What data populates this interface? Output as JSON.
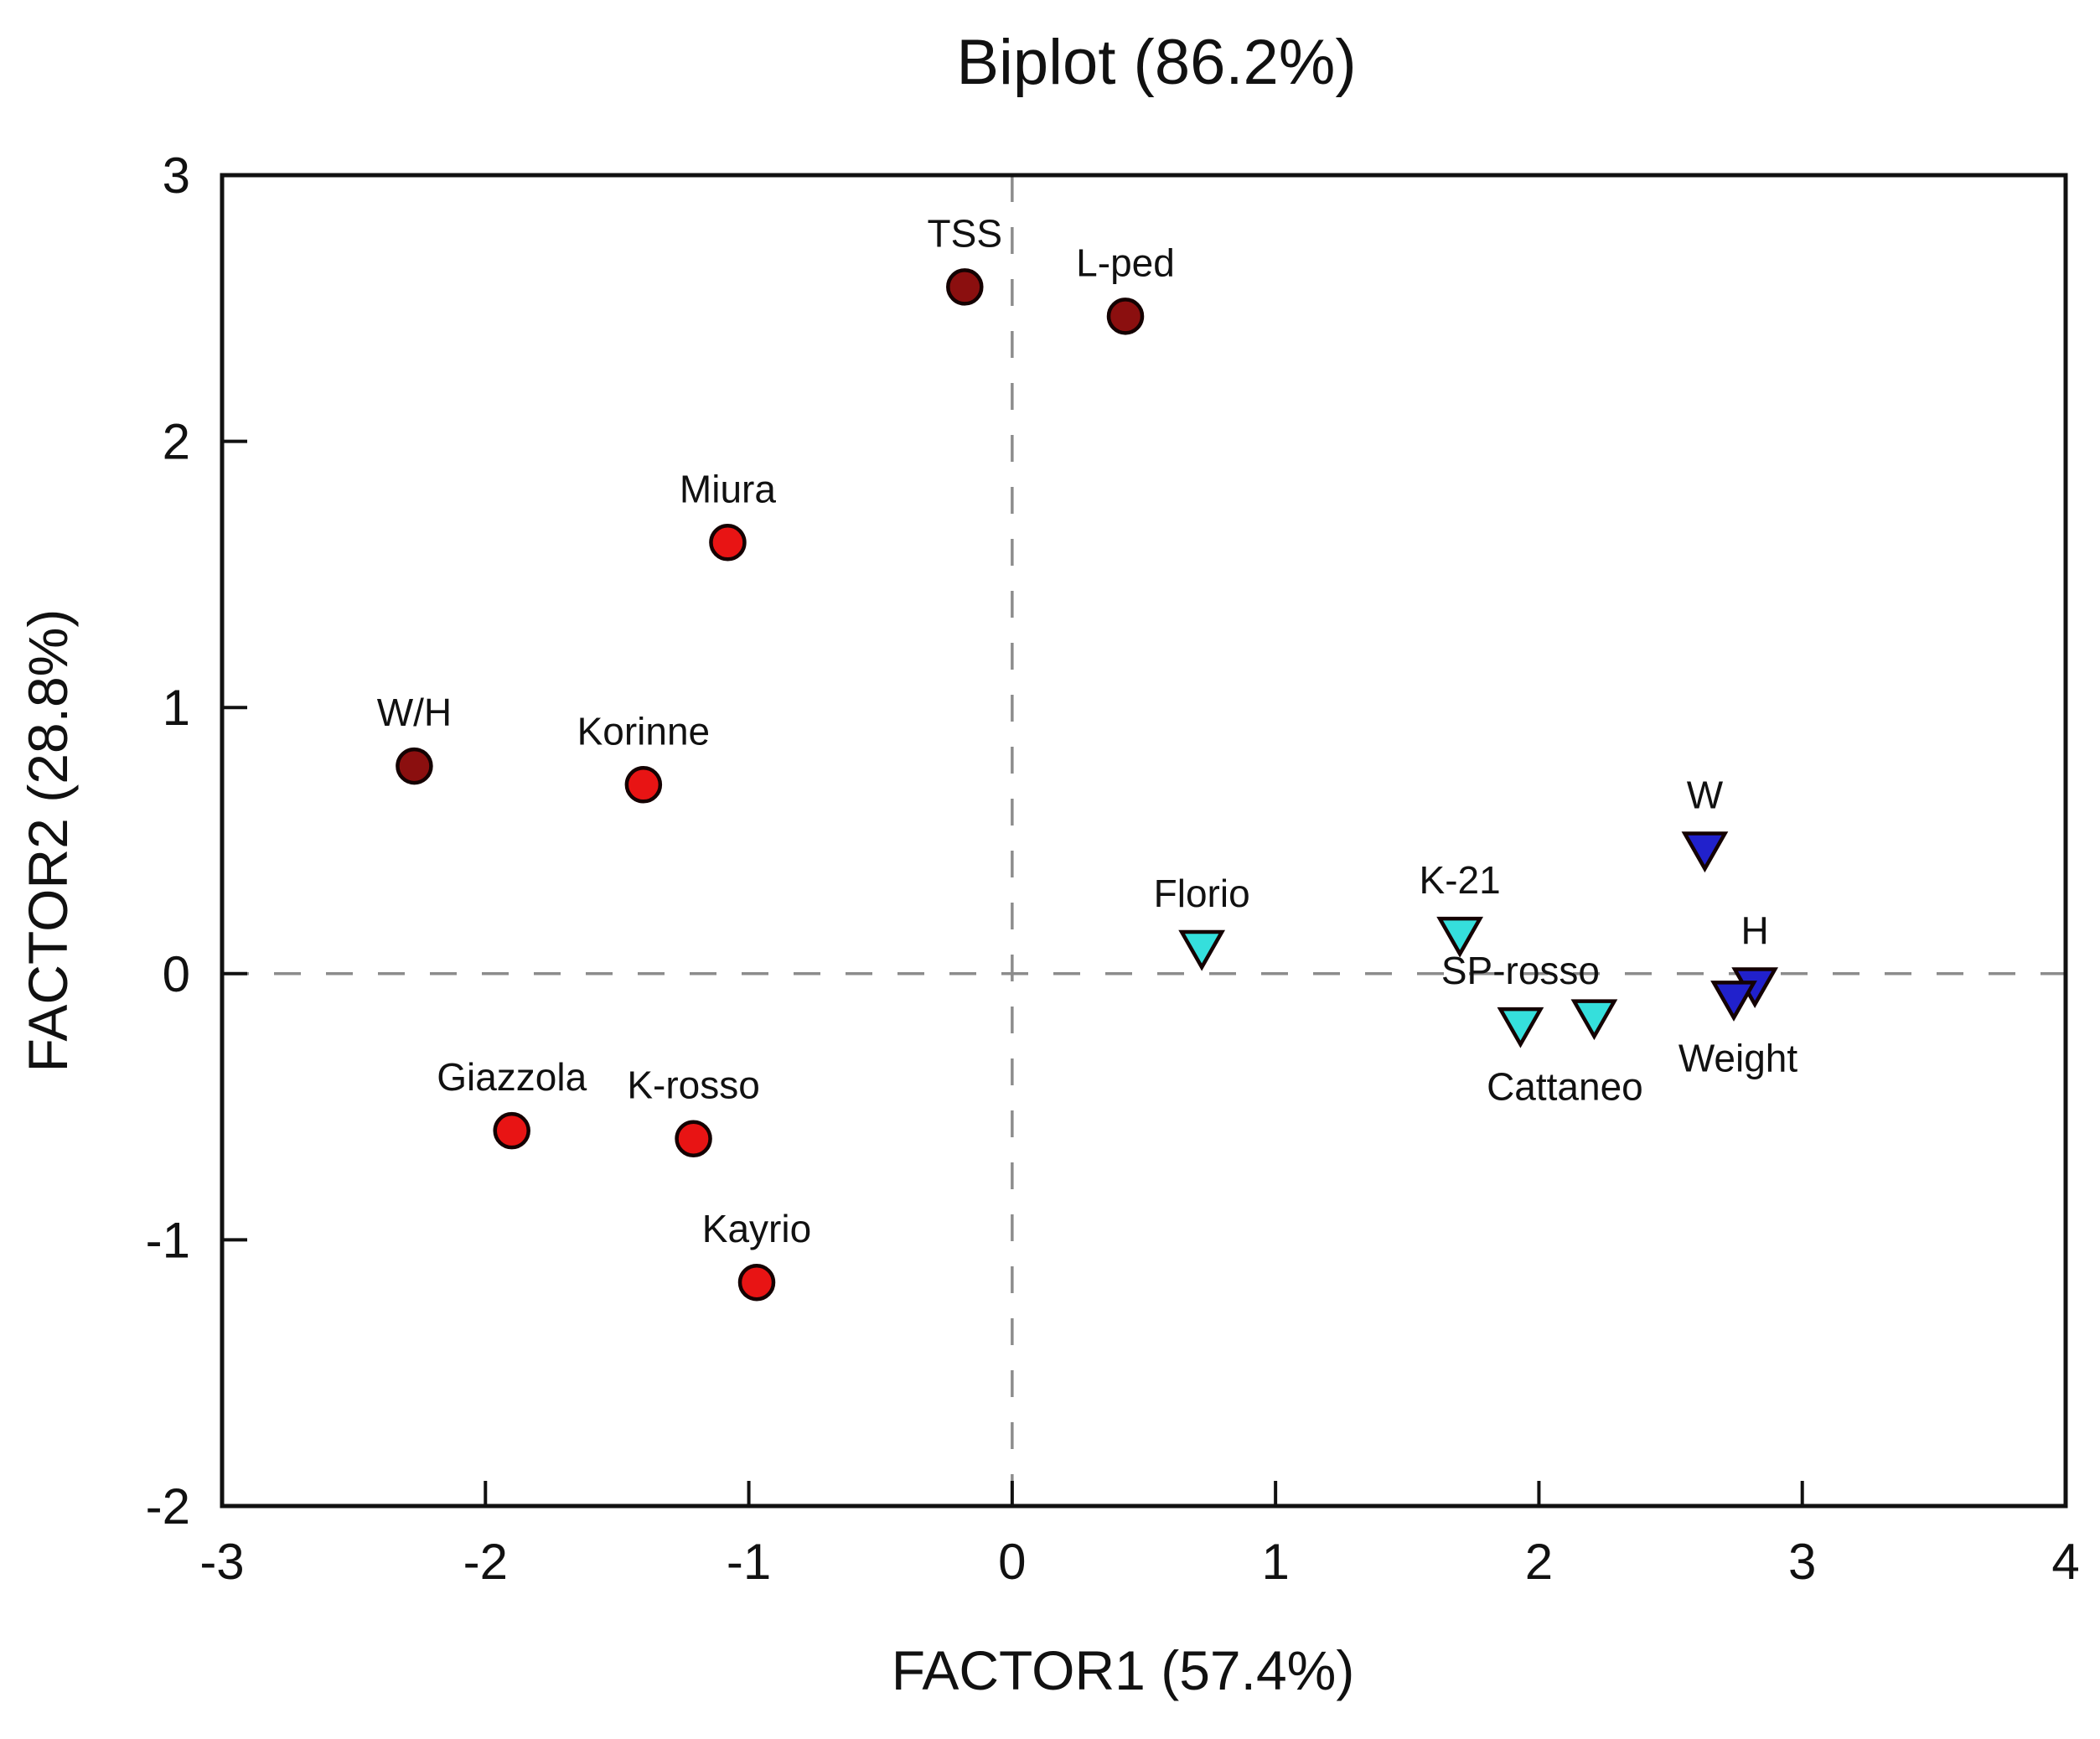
{
  "figure": {
    "title": "Biplot (86.2%)",
    "x_axis_label": "FACTOR1 (57.4%)",
    "y_axis_label": "FACTOR2 (28.8%)"
  },
  "colors": {
    "variable_circle_fill": "#8b0f0f",
    "cultivar_circle_fill": "#e81414",
    "cultivar_triangle_fill": "#35dfdc",
    "variable_triangle_fill": "#2121cc",
    "marker_edge": "#140202",
    "axis": "#111111",
    "reference_line": "#8c8c8c",
    "text": "#111111",
    "background": "#ffffff"
  },
  "chart_data": {
    "type": "scatter",
    "title": "Biplot (86.2%)",
    "xlabel": "FACTOR1 (57.4%)",
    "ylabel": "FACTOR2 (28.8%)",
    "xlim": [
      -3,
      4
    ],
    "ylim": [
      -2,
      3
    ],
    "x_ticks": [
      -3,
      -2,
      -1,
      0,
      1,
      2,
      3,
      4
    ],
    "y_ticks": [
      -2,
      -1,
      0,
      1,
      2,
      3
    ],
    "grid": false,
    "legend": "none",
    "reference_lines": [
      {
        "axis": "x",
        "value": 0,
        "style": "dashed"
      },
      {
        "axis": "y",
        "value": 0,
        "style": "dashed"
      }
    ],
    "series": [
      {
        "name": "variables-dark-red-circles",
        "marker": "circle",
        "fill": "#8b0f0f",
        "points": [
          {
            "label": "TSS",
            "x": -0.18,
            "y": 2.58
          },
          {
            "label": "L-ped",
            "x": 0.43,
            "y": 2.47
          },
          {
            "label": "W/H",
            "x": -2.27,
            "y": 0.78
          }
        ]
      },
      {
        "name": "cultivars-red-circles",
        "marker": "circle",
        "fill": "#e81414",
        "points": [
          {
            "label": "Miura",
            "x": -1.08,
            "y": 1.62
          },
          {
            "label": "Korinne",
            "x": -1.4,
            "y": 0.71
          },
          {
            "label": "Giazzola",
            "x": -1.9,
            "y": -0.59
          },
          {
            "label": "K-rosso",
            "x": -1.21,
            "y": -0.62
          },
          {
            "label": "Kayrio",
            "x": -0.97,
            "y": -1.16
          }
        ]
      },
      {
        "name": "cultivars-cyan-triangles",
        "marker": "triangle-down",
        "fill": "#35dfdc",
        "points": [
          {
            "label": "Florio",
            "x": 0.72,
            "y": 0.1
          },
          {
            "label": "K-21",
            "x": 1.7,
            "y": 0.15
          },
          {
            "label": "SP-rosso",
            "x": 1.93,
            "y": -0.19
          },
          {
            "label": "Cattaneo",
            "x": 2.21,
            "y": -0.16,
            "label_pos": "below",
            "label_dx": -35,
            "label_dy": 100
          }
        ]
      },
      {
        "name": "variables-navy-triangles",
        "marker": "triangle-down",
        "fill": "#2121cc",
        "points": [
          {
            "label": "W",
            "x": 2.63,
            "y": 0.47
          },
          {
            "label": "H",
            "x": 2.82,
            "y": -0.04
          },
          {
            "label": "Weight",
            "x": 2.74,
            "y": -0.09,
            "label_pos": "below",
            "label_dx": 5,
            "label_dy": 88
          }
        ]
      }
    ]
  }
}
